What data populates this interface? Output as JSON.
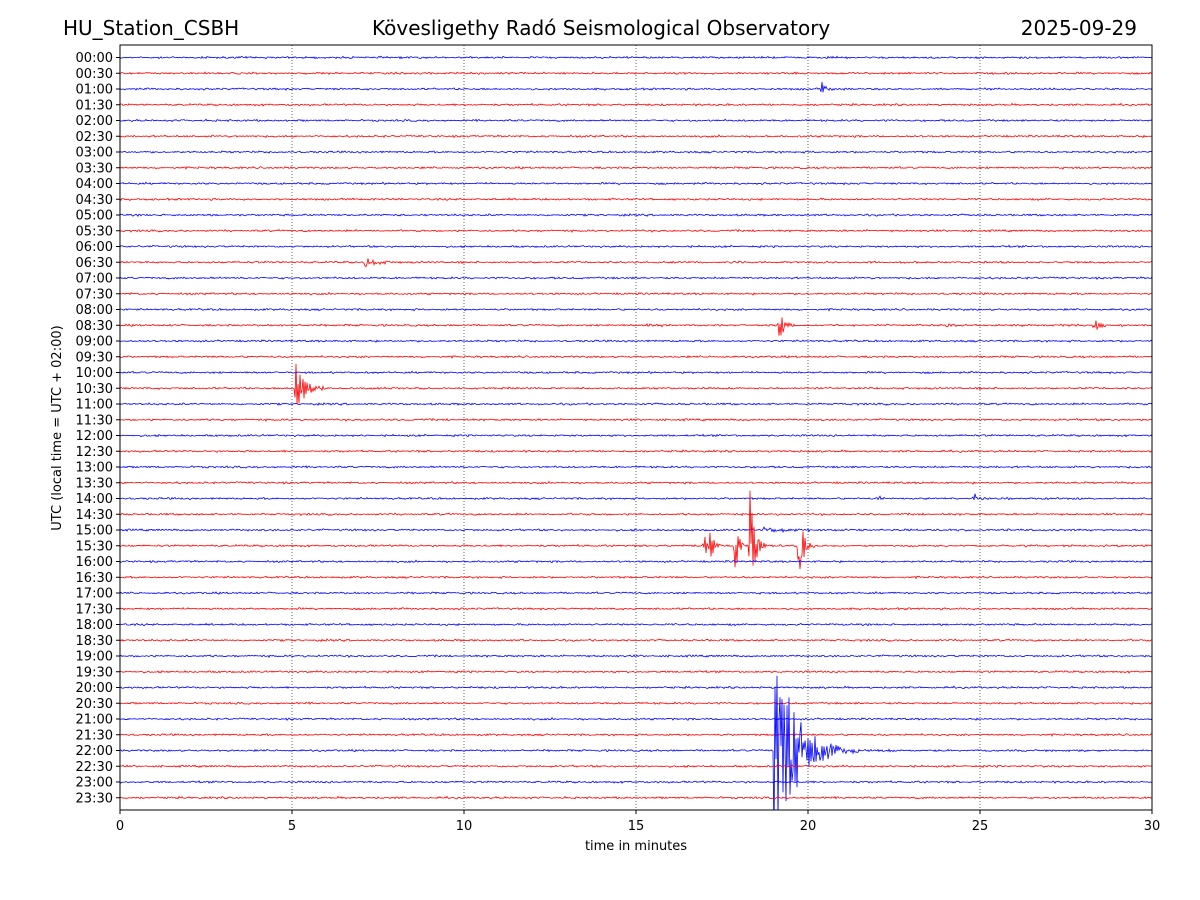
{
  "header": {
    "station": "HU_Station_CSBH",
    "observatory": "Kövesligethy Radó Seismological Observatory",
    "date": "2025-09-29"
  },
  "chart_data": {
    "type": "line",
    "title": "Kövesligethy Radó Seismological Observatory",
    "xlabel": "time in minutes",
    "ylabel": "UTC (local time = UTC + 02:00)",
    "xlim": [
      0,
      30
    ],
    "x_ticks": [
      0,
      5,
      10,
      15,
      20,
      25,
      30
    ],
    "x_tick_labels": [
      "0",
      "5",
      "10",
      "15",
      "20",
      "25",
      "30"
    ],
    "grid": "vertical dotted at 5-minute ticks",
    "trace_colors": [
      "#0000ff",
      "#ff0000"
    ],
    "row_labels": [
      "00:00",
      "00:30",
      "01:00",
      "01:30",
      "02:00",
      "02:30",
      "03:00",
      "03:30",
      "04:00",
      "04:30",
      "05:00",
      "05:30",
      "06:00",
      "06:30",
      "07:00",
      "07:30",
      "08:00",
      "08:30",
      "09:00",
      "09:30",
      "10:00",
      "10:30",
      "11:00",
      "11:30",
      "12:00",
      "12:30",
      "13:00",
      "13:30",
      "14:00",
      "14:30",
      "15:00",
      "15:30",
      "16:00",
      "16:30",
      "17:00",
      "17:30",
      "18:00",
      "18:30",
      "19:00",
      "19:30",
      "20:00",
      "20:30",
      "21:00",
      "21:30",
      "22:00",
      "22:30",
      "23:00",
      "23:30"
    ],
    "events": [
      {
        "row": "01:00",
        "minute": 20.4,
        "amplitude_rows": 0.45,
        "decay_minutes": 0.15
      },
      {
        "row": "06:30",
        "minute": 7.1,
        "amplitude_rows": 0.35,
        "decay_minutes": 0.35
      },
      {
        "row": "08:30",
        "minute": 15.3,
        "amplitude_rows": 0.12,
        "decay_minutes": 0.4
      },
      {
        "row": "08:30",
        "minute": 19.15,
        "amplitude_rows": 1.3,
        "decay_minutes": 0.12
      },
      {
        "row": "08:30",
        "minute": 24.0,
        "amplitude_rows": 0.12,
        "decay_minutes": 0.4
      },
      {
        "row": "08:30",
        "minute": 28.3,
        "amplitude_rows": 0.55,
        "decay_minutes": 0.15
      },
      {
        "row": "10:30",
        "minute": 5.1,
        "amplitude_rows": 2.0,
        "decay_minutes": 0.25
      },
      {
        "row": "14:00",
        "minute": 22.05,
        "amplitude_rows": 0.3,
        "decay_minutes": 0.1
      },
      {
        "row": "14:00",
        "minute": 24.8,
        "amplitude_rows": 0.5,
        "decay_minutes": 0.12
      },
      {
        "row": "15:00",
        "minute": 18.7,
        "amplitude_rows": 0.2,
        "decay_minutes": 0.9
      },
      {
        "row": "15:30",
        "minute": 16.95,
        "amplitude_rows": 1.6,
        "decay_minutes": 0.1
      },
      {
        "row": "15:30",
        "minute": 17.15,
        "amplitude_rows": 1.2,
        "decay_minutes": 0.1
      },
      {
        "row": "15:30",
        "minute": 17.85,
        "amplitude_rows": 2.8,
        "decay_minutes": 0.1
      },
      {
        "row": "15:30",
        "minute": 18.3,
        "amplitude_rows": 5.4,
        "decay_minutes": 0.12
      },
      {
        "row": "15:30",
        "minute": 19.7,
        "amplitude_rows": 3.6,
        "decay_minutes": 0.12
      },
      {
        "row": "22:00",
        "minute": 19.0,
        "amplitude_rows": 7.5,
        "decay_minutes": 0.6
      }
    ]
  }
}
